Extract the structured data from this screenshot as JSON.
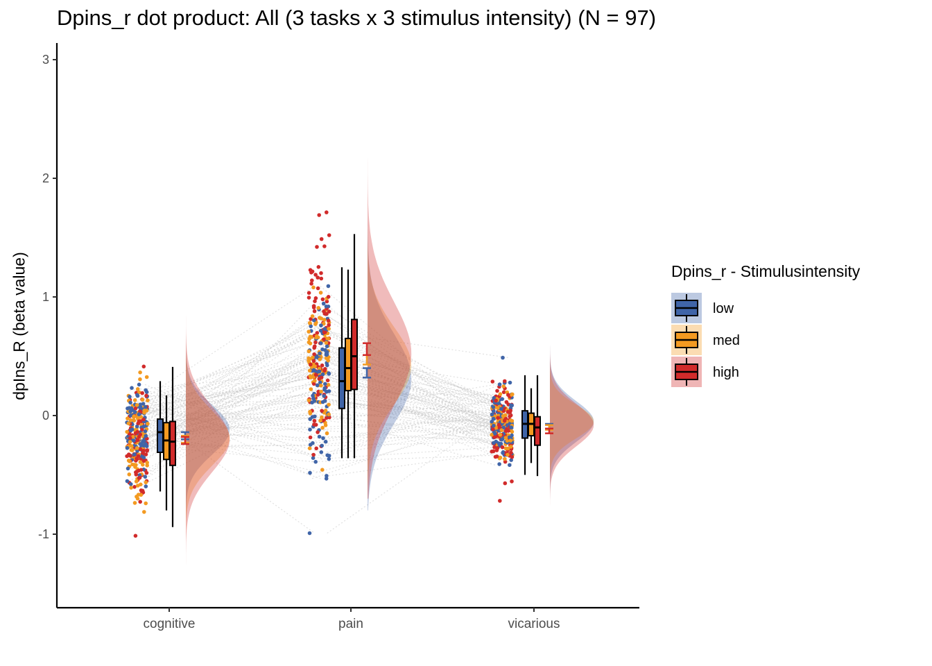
{
  "title": "Dpins_r dot product: All (3 tasks x 3 stimulus intensity) (N = 97)",
  "colors": {
    "low": "#4065a8",
    "med": "#f39a21",
    "high": "#d12b2b",
    "paired_lines": "#c8c8c8"
  },
  "chart_data": {
    "type": "raincloud",
    "title": "Dpins_r dot product: All (3 tasks x 3 stimulus intensity) (N = 97)",
    "ylabel": "dpIns_R  (beta value)",
    "xlabel": "",
    "categories": [
      "cognitive",
      "pain",
      "vicarious"
    ],
    "ylim": [
      -1.6,
      3.1
    ],
    "yticks": [
      -1,
      0,
      1,
      2,
      3
    ],
    "ytick_labels": [
      "-1",
      "0",
      "1",
      "2",
      "3"
    ],
    "grid": false,
    "n_subjects": 97,
    "legend": {
      "title": "Dpins_r - Stimulusintensity",
      "position": "right",
      "entries": [
        "low",
        "med",
        "high"
      ]
    },
    "series": [
      {
        "name": "low",
        "boxplots": [
          {
            "q1": -0.31,
            "median": -0.14,
            "q3": -0.03,
            "whisker_low": -0.64,
            "whisker_high": 0.29
          },
          {
            "q1": 0.06,
            "median": 0.29,
            "q3": 0.57,
            "whisker_low": -0.36,
            "whisker_high": 1.25
          },
          {
            "q1": -0.19,
            "median": -0.07,
            "q3": 0.04,
            "whisker_low": -0.5,
            "whisker_high": 0.34
          }
        ],
        "mean_se": [
          {
            "mean": -0.17,
            "se": 0.03
          },
          {
            "mean": 0.36,
            "se": 0.04
          },
          {
            "mean": -0.09,
            "se": 0.02
          }
        ],
        "density_range": [
          [
            -1.3,
            1.2
          ],
          [
            -0.8,
            2.6
          ],
          [
            -0.9,
            0.7
          ]
        ]
      },
      {
        "name": "med",
        "boxplots": [
          {
            "q1": -0.37,
            "median": -0.21,
            "q3": -0.06,
            "whisker_low": -0.8,
            "whisker_high": 0.17
          },
          {
            "q1": 0.21,
            "median": 0.4,
            "q3": 0.65,
            "whisker_low": -0.36,
            "whisker_high": 1.23
          },
          {
            "q1": -0.17,
            "median": -0.07,
            "q3": 0.02,
            "whisker_low": -0.4,
            "whisker_high": 0.23
          }
        ],
        "mean_se": [
          {
            "mean": -0.2,
            "se": 0.03
          },
          {
            "mean": 0.47,
            "se": 0.04
          },
          {
            "mean": -0.1,
            "se": 0.02
          }
        ],
        "density_range": [
          [
            -1.2,
            1.0
          ],
          [
            -0.7,
            2.3
          ],
          [
            -0.6,
            1.15
          ]
        ]
      },
      {
        "name": "high",
        "boxplots": [
          {
            "q1": -0.42,
            "median": -0.22,
            "q3": -0.05,
            "whisker_low": -0.94,
            "whisker_high": 0.41
          },
          {
            "q1": 0.22,
            "median": 0.5,
            "q3": 0.81,
            "whisker_low": -0.36,
            "whisker_high": 1.53
          },
          {
            "q1": -0.25,
            "median": -0.1,
            "q3": -0.01,
            "whisker_low": -0.51,
            "whisker_high": 0.34
          }
        ],
        "mean_se": [
          {
            "mean": -0.21,
            "se": 0.03
          },
          {
            "mean": 0.56,
            "se": 0.05
          },
          {
            "mean": -0.13,
            "se": 0.02
          }
        ],
        "density_range": [
          [
            -1.4,
            1.25
          ],
          [
            -0.7,
            2.9
          ],
          [
            -1.25,
            0.8
          ]
        ]
      }
    ]
  }
}
